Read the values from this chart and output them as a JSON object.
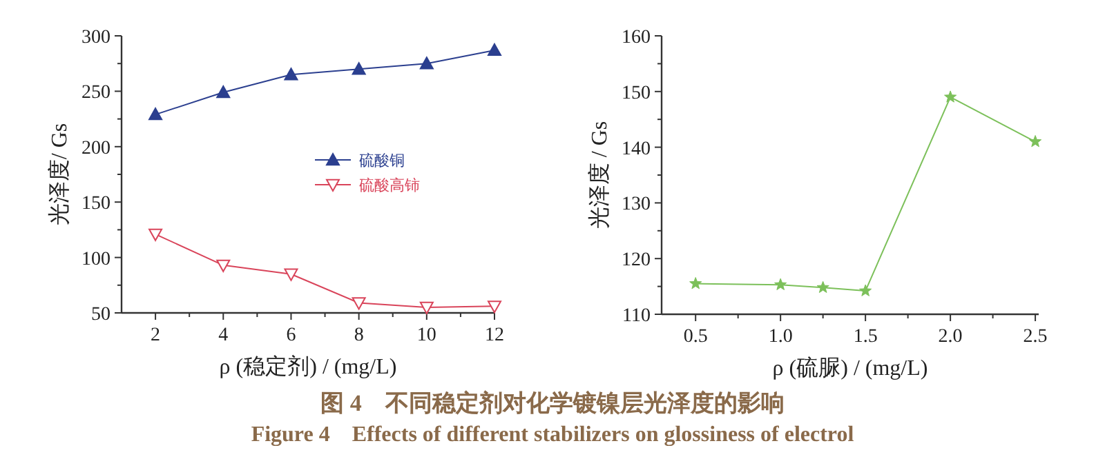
{
  "chart_data": [
    {
      "type": "line",
      "xlabel": "ρ (稳定剂) / (mg/L)",
      "ylabel": "光泽度/ Gs",
      "x": [
        2,
        4,
        6,
        8,
        10,
        12
      ],
      "series": [
        {
          "name": "硫酸铜",
          "color": "#2b3f8f",
          "marker": "triangle",
          "values": [
            229,
            249,
            265,
            270,
            275,
            287
          ]
        },
        {
          "name": "硫酸高铈",
          "color": "#d9445a",
          "marker": "triangle_down",
          "values": [
            121,
            93,
            85,
            59,
            55,
            56
          ]
        }
      ],
      "xlim": [
        1,
        12
      ],
      "ylim": [
        50,
        300
      ],
      "xticks": [
        2,
        {
          "value": 3,
          "label": null
        },
        4,
        {
          "value": 5,
          "label": null
        },
        6,
        {
          "value": 7,
          "label": null
        },
        8,
        {
          "value": 9,
          "label": null
        },
        10,
        {
          "value": 11,
          "label": null
        },
        12
      ],
      "yticks": [
        50,
        {
          "value": 75,
          "label": null
        },
        100,
        {
          "value": 125,
          "label": null
        },
        150,
        {
          "value": 175,
          "label": null
        },
        200,
        {
          "value": 225,
          "label": null
        },
        250,
        {
          "value": 275,
          "label": null
        },
        300
      ],
      "grid": false,
      "legend": "right",
      "annotations": [
        "图 4　不同稳定剂对化学镀镍层光泽度的影响",
        "Figure 4　Effects of different stabilizers on glossiness of electrol"
      ]
    },
    {
      "type": "line",
      "xlabel": "ρ (硫脲) / (mg/L)",
      "ylabel": "光泽度 / Gs",
      "x": [
        0.5,
        1.0,
        1.25,
        1.5,
        2.0,
        2.5
      ],
      "series": [
        {
          "color": "#7cc05a",
          "marker": "star",
          "values": [
            115.5,
            115.3,
            114.8,
            114.2,
            149,
            141
          ]
        }
      ],
      "xlim": [
        0.3,
        2.52
      ],
      "ylim": [
        110,
        160
      ],
      "xticks": [
        {
          "value": 0.5,
          "label": "0.5"
        },
        {
          "value": 0.75,
          "label": null
        },
        {
          "value": 1.0,
          "label": "1.0"
        },
        {
          "value": 1.25,
          "label": null
        },
        {
          "value": 1.5,
          "label": "1.5"
        },
        {
          "value": 1.75,
          "label": null
        },
        {
          "value": 2.0,
          "label": "2.0"
        },
        {
          "value": 2.25,
          "label": null
        },
        {
          "value": 2.5,
          "label": "2.5"
        }
      ],
      "yticks": [
        110,
        {
          "value": 115,
          "label": null
        },
        120,
        {
          "value": 125,
          "label": null
        },
        130,
        {
          "value": 135,
          "label": null
        },
        140,
        {
          "value": 145,
          "label": null
        },
        150,
        {
          "value": 155,
          "label": null
        },
        160
      ],
      "grid": false,
      "legend": false
    }
  ]
}
